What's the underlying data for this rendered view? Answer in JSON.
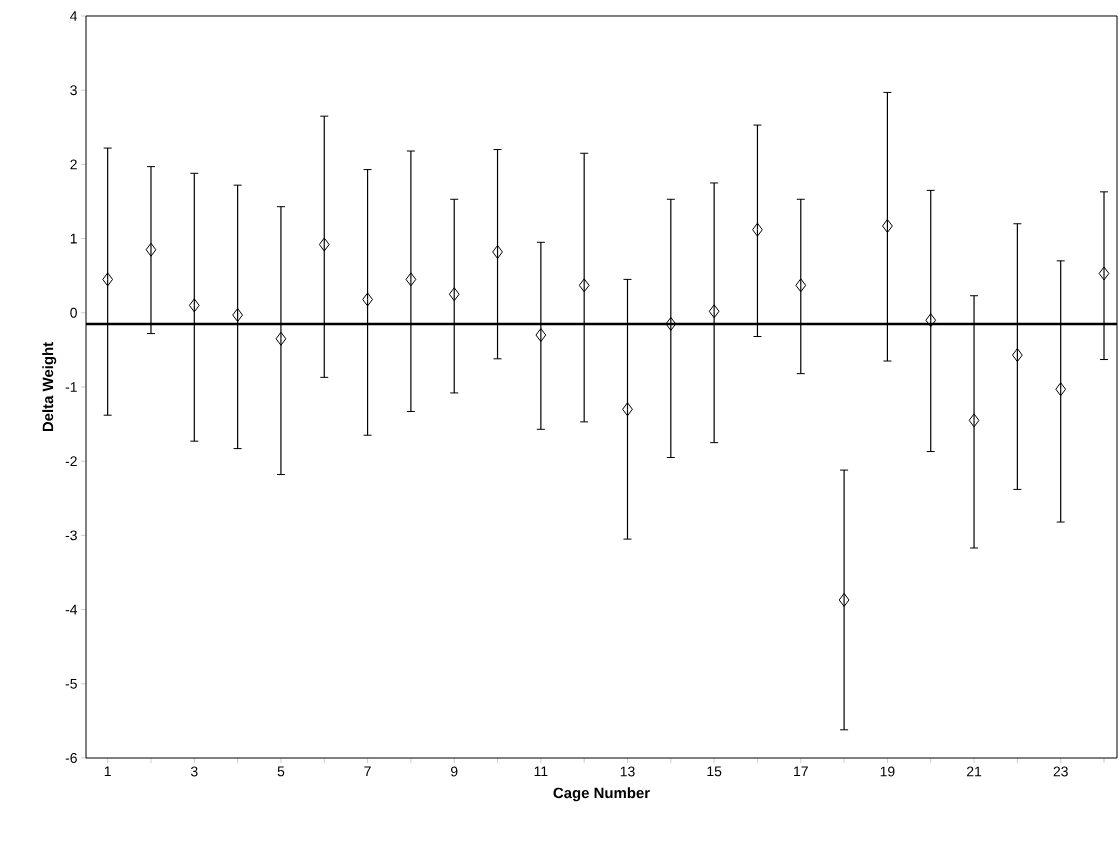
{
  "chart_data": {
    "type": "scatter",
    "xlabel": "Cage Number",
    "ylabel": "Delta Weight",
    "x": [
      1,
      2,
      3,
      4,
      5,
      6,
      7,
      8,
      9,
      10,
      11,
      12,
      13,
      14,
      15,
      16,
      17,
      18,
      19,
      20,
      21,
      22,
      23,
      24
    ],
    "values": [
      0.45,
      0.85,
      0.1,
      -0.03,
      -0.35,
      0.92,
      0.18,
      0.45,
      0.25,
      0.82,
      -0.3,
      0.37,
      -1.3,
      -0.15,
      0.02,
      1.12,
      0.37,
      -3.87,
      1.17,
      -0.1,
      -1.45,
      -0.57,
      -1.03,
      0.53
    ],
    "errors": [
      [
        -1.38,
        2.22
      ],
      [
        -0.28,
        1.97
      ],
      [
        -1.73,
        1.88
      ],
      [
        -1.83,
        1.72
      ],
      [
        -2.18,
        1.43
      ],
      [
        -0.87,
        2.65
      ],
      [
        -1.65,
        1.93
      ],
      [
        -1.33,
        2.18
      ],
      [
        -1.08,
        1.53
      ],
      [
        -0.62,
        2.2
      ],
      [
        -1.57,
        0.95
      ],
      [
        -1.47,
        2.15
      ],
      [
        -3.05,
        0.45
      ],
      [
        -1.95,
        1.53
      ],
      [
        -1.75,
        1.75
      ],
      [
        -0.32,
        2.53
      ],
      [
        -0.82,
        1.53
      ],
      [
        -5.62,
        -2.12
      ],
      [
        -0.65,
        2.97
      ],
      [
        -1.87,
        1.65
      ],
      [
        -3.17,
        0.23
      ],
      [
        -2.38,
        1.2
      ],
      [
        -2.82,
        0.7
      ],
      [
        -0.63,
        1.63
      ]
    ],
    "color": "#000000",
    "marker": "diamond",
    "xlim": [
      0.5,
      24.3
    ],
    "xticks": [
      1,
      {
        "value": 2,
        "label": null
      },
      3,
      {
        "value": 4,
        "label": null
      },
      5,
      {
        "value": 6,
        "label": null
      },
      7,
      {
        "value": 8,
        "label": null
      },
      9,
      {
        "value": 10,
        "label": null
      },
      11,
      {
        "value": 12,
        "label": null
      },
      13,
      {
        "value": 14,
        "label": null
      },
      15,
      {
        "value": 16,
        "label": null
      },
      17,
      {
        "value": 18,
        "label": null
      },
      19,
      {
        "value": 20,
        "label": null
      },
      21,
      {
        "value": 22,
        "label": null
      },
      23,
      {
        "value": 24,
        "label": null
      }
    ],
    "ylim": [
      -6,
      4
    ],
    "yticks": [
      -6,
      -5,
      -4,
      -3,
      -2,
      -1,
      0,
      1,
      2,
      3,
      4
    ],
    "ref_lines": [
      {
        "axis": "y",
        "value": -0.15,
        "color": "#000000"
      }
    ],
    "grid": false
  }
}
